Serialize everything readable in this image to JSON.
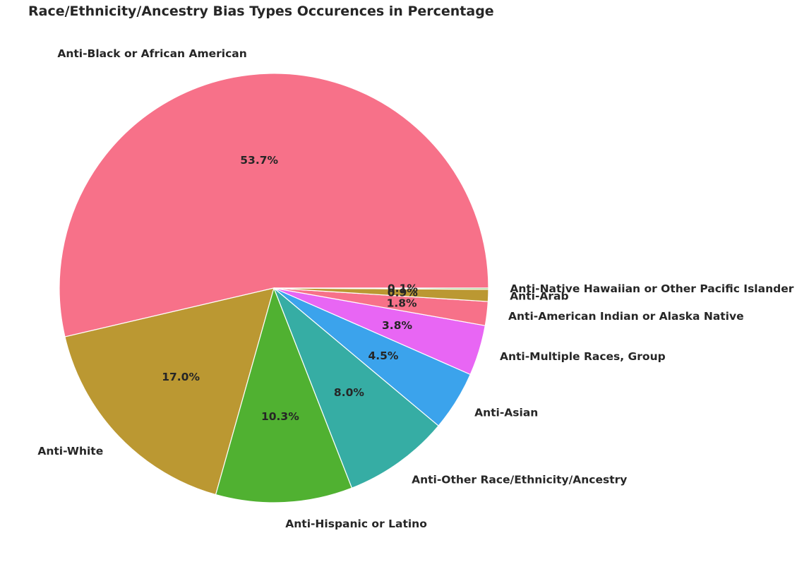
{
  "chart_data": {
    "type": "pie",
    "title": "Race/Ethnicity/Ancestry Bias Types Occurences in Percentage",
    "labels": [
      "Anti-Black or African American",
      "Anti-White",
      "Anti-Hispanic or Latino",
      "Anti-Other Race/Ethnicity/Ancestry",
      "Anti-Asian",
      "Anti-Multiple Races, Group",
      "Anti-American Indian or Alaska Native",
      "Anti-Arab",
      "Anti-Native Hawaiian or Other Pacific Islander"
    ],
    "values": [
      53.7,
      17.0,
      10.3,
      8.0,
      4.5,
      3.8,
      1.8,
      0.9,
      0.1
    ],
    "value_labels": [
      "53.7%",
      "17.0%",
      "10.3%",
      "8.0%",
      "4.5%",
      "3.8%",
      "1.8%",
      "0.9%",
      "0.1%"
    ],
    "colors": [
      "#f77189",
      "#bb9832",
      "#50b131",
      "#36ada4",
      "#3ba3ec",
      "#e866f4",
      "#f77189",
      "#bb9832",
      "#50b131"
    ],
    "start_angle_deg": 0,
    "direction": "counterclockwise",
    "legend": "none"
  }
}
